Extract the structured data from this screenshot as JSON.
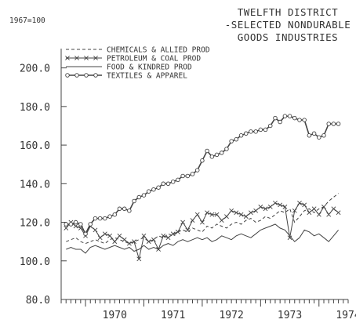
{
  "chart_data": {
    "type": "line",
    "title_lines": [
      "TWELFTH DISTRICT",
      "-SELECTED NONDURABLE",
      "GOODS INDUSTRIES"
    ],
    "base_label": "1967=100",
    "ylim": [
      80,
      210
    ],
    "y_ticks": [
      80.0,
      100.0,
      120.0,
      140.0,
      160.0,
      180.0,
      200.0
    ],
    "y_tick_labels": [
      "80.0",
      "100.0",
      "120.0",
      "140.0",
      "160.0",
      "180.0",
      "200.0"
    ],
    "x_ticks": [
      1970,
      1971,
      1972,
      1973,
      1974
    ],
    "x_tick_labels": [
      "1970",
      "1971",
      "1972",
      "1973",
      "1974"
    ],
    "x_range": [
      1969.583,
      1974.5
    ],
    "series": [
      {
        "name": "CHEMICALS & ALLIED PROD",
        "style": "dashed",
        "x": [
          1969.667,
          1969.75,
          1969.833,
          1969.917,
          1970.0,
          1970.083,
          1970.167,
          1970.25,
          1970.333,
          1970.417,
          1970.5,
          1970.583,
          1970.667,
          1970.75,
          1970.833,
          1970.917,
          1971.0,
          1971.083,
          1971.167,
          1971.25,
          1971.333,
          1971.417,
          1971.5,
          1971.583,
          1971.667,
          1971.75,
          1971.833,
          1971.917,
          1972.0,
          1972.083,
          1972.167,
          1972.25,
          1972.333,
          1972.417,
          1972.5,
          1972.583,
          1972.667,
          1972.75,
          1972.833,
          1972.917,
          1973.0,
          1973.083,
          1973.167,
          1973.25,
          1973.333,
          1973.417,
          1973.5,
          1973.583,
          1973.667,
          1973.75,
          1973.833,
          1973.917,
          1974.0,
          1974.083,
          1974.167,
          1974.25,
          1974.333
        ],
        "values": [
          110,
          111,
          112,
          110,
          109,
          110,
          111,
          110,
          109,
          111,
          112,
          111,
          110,
          109,
          110,
          111,
          112,
          110,
          111,
          113,
          112,
          114,
          113,
          115,
          116,
          115,
          117,
          116,
          115,
          118,
          117,
          119,
          118,
          117,
          119,
          120,
          119,
          121,
          122,
          120,
          121,
          123,
          122,
          124,
          126,
          125,
          127,
          120,
          123,
          126,
          127,
          125,
          127,
          128,
          131,
          133,
          135
        ]
      },
      {
        "name": "PETROLEUM & COAL PROD",
        "style": "x-marker",
        "x": [
          1969.667,
          1969.75,
          1969.833,
          1969.917,
          1970.0,
          1970.083,
          1970.167,
          1970.25,
          1970.333,
          1970.417,
          1970.5,
          1970.583,
          1970.667,
          1970.75,
          1970.833,
          1970.917,
          1971.0,
          1971.083,
          1971.167,
          1971.25,
          1971.333,
          1971.417,
          1971.5,
          1971.583,
          1971.667,
          1971.75,
          1971.833,
          1971.917,
          1972.0,
          1972.083,
          1972.167,
          1972.25,
          1972.333,
          1972.417,
          1972.5,
          1972.583,
          1972.667,
          1972.75,
          1972.833,
          1972.917,
          1973.0,
          1973.083,
          1973.167,
          1973.25,
          1973.333,
          1973.417,
          1973.5,
          1973.583,
          1973.667,
          1973.75,
          1973.833,
          1973.917,
          1974.0,
          1974.083,
          1974.167,
          1974.25,
          1974.333
        ],
        "values": [
          117,
          120,
          118,
          117,
          113,
          118,
          116,
          112,
          114,
          113,
          110,
          113,
          111,
          109,
          110,
          101,
          113,
          110,
          111,
          106,
          113,
          112,
          114,
          115,
          120,
          116,
          121,
          124,
          120,
          125,
          124,
          124,
          121,
          123,
          126,
          125,
          124,
          123,
          125,
          126,
          128,
          127,
          128,
          130,
          129,
          128,
          112,
          126,
          130,
          129,
          125,
          127,
          124,
          128,
          124,
          127,
          125
        ]
      },
      {
        "name": "FOOD & KINDRED PROD",
        "style": "solid",
        "x": [
          1969.667,
          1969.75,
          1969.833,
          1969.917,
          1970.0,
          1970.083,
          1970.167,
          1970.25,
          1970.333,
          1970.417,
          1970.5,
          1970.583,
          1970.667,
          1970.75,
          1970.833,
          1970.917,
          1971.0,
          1971.083,
          1971.167,
          1971.25,
          1971.333,
          1971.417,
          1971.5,
          1971.583,
          1971.667,
          1971.75,
          1971.833,
          1971.917,
          1972.0,
          1972.083,
          1972.167,
          1972.25,
          1972.333,
          1972.417,
          1972.5,
          1972.583,
          1972.667,
          1972.75,
          1972.833,
          1972.917,
          1973.0,
          1973.083,
          1973.167,
          1973.25,
          1973.333,
          1973.417,
          1973.5,
          1973.583,
          1973.667,
          1973.75,
          1973.833,
          1973.917,
          1974.0,
          1974.083,
          1974.167,
          1974.25,
          1974.333
        ],
        "values": [
          106,
          107,
          106,
          106,
          104,
          107,
          108,
          107,
          106,
          107,
          108,
          107,
          106,
          107,
          105,
          106,
          108,
          106,
          107,
          106,
          108,
          109,
          108,
          110,
          111,
          110,
          111,
          112,
          111,
          112,
          110,
          111,
          113,
          112,
          111,
          113,
          114,
          113,
          112,
          114,
          116,
          117,
          118,
          119,
          117,
          116,
          113,
          110,
          112,
          116,
          115,
          113,
          114,
          112,
          110,
          113,
          116
        ]
      },
      {
        "name": "TEXTILES & APPAREL",
        "style": "o-marker",
        "x": [
          1969.667,
          1969.75,
          1969.833,
          1969.917,
          1970.0,
          1970.083,
          1970.167,
          1970.25,
          1970.333,
          1970.417,
          1970.5,
          1970.583,
          1970.667,
          1970.75,
          1970.833,
          1970.917,
          1971.0,
          1971.083,
          1971.167,
          1971.25,
          1971.333,
          1971.417,
          1971.5,
          1971.583,
          1971.667,
          1971.75,
          1971.833,
          1971.917,
          1972.0,
          1972.083,
          1972.167,
          1972.25,
          1972.333,
          1972.417,
          1972.5,
          1972.583,
          1972.667,
          1972.75,
          1972.833,
          1972.917,
          1973.0,
          1973.083,
          1973.167,
          1973.25,
          1973.333,
          1973.417,
          1973.5,
          1973.583,
          1973.667,
          1973.75,
          1973.833,
          1973.917,
          1974.0,
          1974.083,
          1974.167,
          1974.25,
          1974.333
        ],
        "values": [
          119,
          119,
          120,
          119,
          114,
          119,
          122,
          122,
          122,
          123,
          124,
          127,
          127,
          126,
          131,
          133,
          134,
          136,
          137,
          138,
          140,
          140,
          141,
          142,
          144,
          144,
          145,
          147,
          152,
          157,
          154,
          155,
          156,
          158,
          162,
          163,
          165,
          166,
          167,
          167,
          168,
          168,
          170,
          174,
          172,
          175,
          175,
          174,
          173,
          173,
          165,
          166,
          164,
          165,
          171,
          171,
          171
        ]
      }
    ]
  }
}
